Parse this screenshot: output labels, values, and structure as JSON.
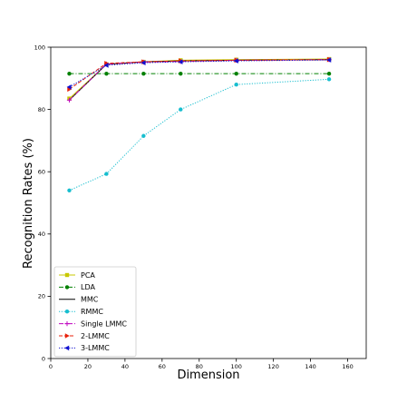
{
  "chart_data": {
    "type": "line",
    "title": "",
    "xlabel": "Dimension",
    "ylabel": "Recognition Rates (%)",
    "xlim": [
      0,
      170
    ],
    "ylim": [
      0,
      100
    ],
    "xticks": [
      0,
      20,
      40,
      60,
      80,
      100,
      120,
      140,
      160
    ],
    "yticks": [
      0,
      20,
      40,
      60,
      80,
      100
    ],
    "grid": false,
    "legend_position": "bottom-left",
    "x": [
      10,
      30,
      50,
      70,
      100,
      150
    ],
    "series": [
      {
        "name": "PCA",
        "values": [
          83.5,
          94.5,
          95.3,
          95.8,
          96.0,
          96.2
        ],
        "color": "#c8c800",
        "marker": "square",
        "linestyle": "solid"
      },
      {
        "name": "LDA",
        "values": [
          91.5,
          91.5,
          91.5,
          91.5,
          91.5,
          91.5
        ],
        "color": "#008000",
        "marker": "circle",
        "linestyle": "dashdot"
      },
      {
        "name": "MMC",
        "values": [
          83.0,
          94.5,
          95.3,
          95.6,
          95.8,
          96.0
        ],
        "color": "#000000",
        "marker": "none",
        "linestyle": "solid"
      },
      {
        "name": "RMMC",
        "values": [
          54.0,
          59.3,
          71.5,
          80.0,
          88.0,
          89.7
        ],
        "color": "#17becf",
        "marker": "circle",
        "linestyle": "dotted"
      },
      {
        "name": "Single LMMC",
        "values": [
          83.0,
          94.6,
          95.2,
          95.4,
          95.8,
          96.0
        ],
        "color": "#bf00bf",
        "marker": "plus",
        "linestyle": "dashdot"
      },
      {
        "name": "2-LMMC",
        "values": [
          86.5,
          94.8,
          95.3,
          95.6,
          95.8,
          96.0
        ],
        "color": "#e8200a",
        "marker": "triangle-right",
        "linestyle": "dashed"
      },
      {
        "name": "3-LMMC",
        "values": [
          87.2,
          94.2,
          95.0,
          95.3,
          95.6,
          95.9
        ],
        "color": "#1010d0",
        "marker": "triangle-left",
        "linestyle": "dotted"
      }
    ]
  }
}
